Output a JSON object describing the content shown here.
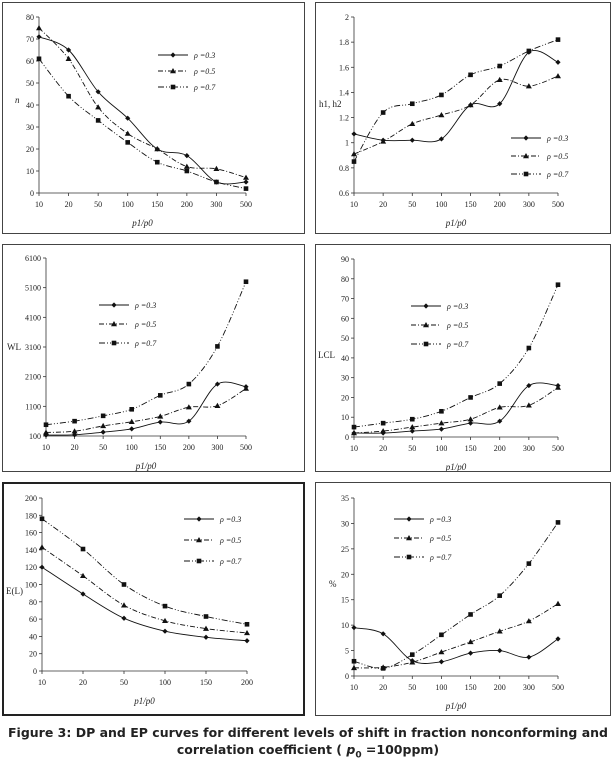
{
  "legend_labels": [
    "ρ =0.3",
    "ρ =0.5",
    "ρ =0.7"
  ],
  "chart_data": [
    {
      "type": "line",
      "ylabel": "n",
      "xlabel": "p1/p0",
      "categories": [
        "10",
        "20",
        "50",
        "100",
        "150",
        "200",
        "300",
        "500"
      ],
      "ylim": [
        0,
        80
      ],
      "ystep": 10,
      "yticks": [
        "0",
        "10",
        "20",
        "30",
        "40",
        "50",
        "60",
        "70",
        "80"
      ],
      "legend": "top-right",
      "series": [
        {
          "name": "ρ =0.3",
          "values": [
            71,
            65,
            46,
            34,
            20,
            17,
            5,
            5
          ]
        },
        {
          "name": "ρ =0.5",
          "values": [
            75,
            61,
            39,
            27,
            20,
            12,
            11,
            7
          ]
        },
        {
          "name": "ρ =0.7",
          "values": [
            61,
            44,
            33,
            23,
            14,
            10,
            5,
            2
          ]
        }
      ]
    },
    {
      "type": "line",
      "ylabel": "h1, h2",
      "xlabel": "p1/p0",
      "categories": [
        "10",
        "20",
        "50",
        "100",
        "150",
        "200",
        "300",
        "500"
      ],
      "ylim": [
        0.6,
        2
      ],
      "ystep": 0.2,
      "yticks": [
        "0.6",
        "0.8",
        "1",
        "1.2",
        "1.4",
        "1.6",
        "1.8",
        "2"
      ],
      "legend": "bottom-right",
      "series": [
        {
          "name": "ρ =0.3",
          "values": [
            1.07,
            1.02,
            1.02,
            1.03,
            1.3,
            1.31,
            1.72,
            1.64
          ]
        },
        {
          "name": "ρ =0.5",
          "values": [
            0.91,
            1.01,
            1.15,
            1.22,
            1.3,
            1.5,
            1.45,
            1.53
          ]
        },
        {
          "name": "ρ =0.7",
          "values": [
            0.85,
            1.24,
            1.31,
            1.38,
            1.54,
            1.61,
            1.73,
            1.82
          ]
        }
      ]
    },
    {
      "type": "line",
      "ylabel": "WL",
      "xlabel": "p1/p0",
      "categories": [
        "10",
        "20",
        "50",
        "100",
        "150",
        "200",
        "300",
        "500"
      ],
      "ylim": [
        100,
        6100
      ],
      "ystep": 1000,
      "yticks": [
        "100",
        "1100",
        "2100",
        "3100",
        "4100",
        "5100",
        "6100"
      ],
      "legend": "top-left",
      "series": [
        {
          "name": "ρ =0.3",
          "values": [
            130,
            140,
            230,
            340,
            570,
            600,
            1850,
            1760
          ]
        },
        {
          "name": "ρ =0.5",
          "values": [
            220,
            260,
            440,
            580,
            760,
            1070,
            1120,
            1700
          ]
        },
        {
          "name": "ρ =0.7",
          "values": [
            480,
            600,
            780,
            1000,
            1470,
            1850,
            3120,
            5300
          ]
        }
      ]
    },
    {
      "type": "line",
      "ylabel": "LCL",
      "xlabel": "p1/p0",
      "categories": [
        "10",
        "20",
        "50",
        "100",
        "150",
        "200",
        "300",
        "500"
      ],
      "ylim": [
        0,
        90
      ],
      "ystep": 10,
      "yticks": [
        "0",
        "10",
        "20",
        "30",
        "40",
        "50",
        "60",
        "70",
        "80",
        "90"
      ],
      "legend": "top-left",
      "series": [
        {
          "name": "ρ =0.3",
          "values": [
            2,
            2,
            3,
            4,
            7,
            8,
            26,
            26
          ]
        },
        {
          "name": "ρ =0.5",
          "values": [
            2,
            3,
            5,
            7,
            9,
            15,
            16,
            25
          ]
        },
        {
          "name": "ρ =0.7",
          "values": [
            5,
            7,
            9,
            13,
            20,
            27,
            45,
            77
          ]
        }
      ]
    },
    {
      "type": "line",
      "ylabel": "E(L)",
      "xlabel": "p1/p0",
      "categories": [
        "10",
        "20",
        "50",
        "100",
        "150",
        "200"
      ],
      "ylim": [
        0,
        200
      ],
      "ystep": 20,
      "yticks": [
        "0",
        "20",
        "40",
        "60",
        "80",
        "100",
        "120",
        "140",
        "160",
        "180",
        "200"
      ],
      "legend": "top-right",
      "series": [
        {
          "name": "ρ =0.3",
          "values": [
            120,
            89,
            61,
            46,
            39,
            35
          ]
        },
        {
          "name": "ρ =0.5",
          "values": [
            143,
            110,
            76,
            58,
            49,
            44
          ]
        },
        {
          "name": "ρ =0.7",
          "values": [
            176,
            141,
            100,
            75,
            63,
            54
          ]
        }
      ]
    },
    {
      "type": "line",
      "ylabel": "%",
      "xlabel": "p1/p0",
      "categories": [
        "10",
        "20",
        "50",
        "100",
        "150",
        "200",
        "300",
        "500"
      ],
      "ylim": [
        0,
        35
      ],
      "ystep": 5,
      "yticks": [
        "0",
        "5",
        "10",
        "15",
        "20",
        "25",
        "30",
        "35"
      ],
      "legend": "top-left",
      "series": [
        {
          "name": "ρ =0.3",
          "values": [
            9.5,
            8.3,
            3.0,
            2.8,
            4.5,
            5.0,
            3.7,
            7.3
          ]
        },
        {
          "name": "ρ =0.5",
          "values": [
            1.6,
            1.7,
            2.7,
            4.7,
            6.7,
            8.8,
            10.8,
            14.2
          ]
        },
        {
          "name": "ρ =0.7",
          "values": [
            2.9,
            1.5,
            4.2,
            8.1,
            12.1,
            15.8,
            22.1,
            30.2
          ]
        }
      ]
    }
  ],
  "caption": {
    "line1": "Figure 3: DP and EP curves for different levels of shift in fraction nonconforming and",
    "line2_prefix": "correlation coefficient ( ",
    "p": "p",
    "sub": "0",
    "line2_suffix": " =100ppm)"
  },
  "colors": {
    "line": "#111111",
    "border": "#444444"
  }
}
